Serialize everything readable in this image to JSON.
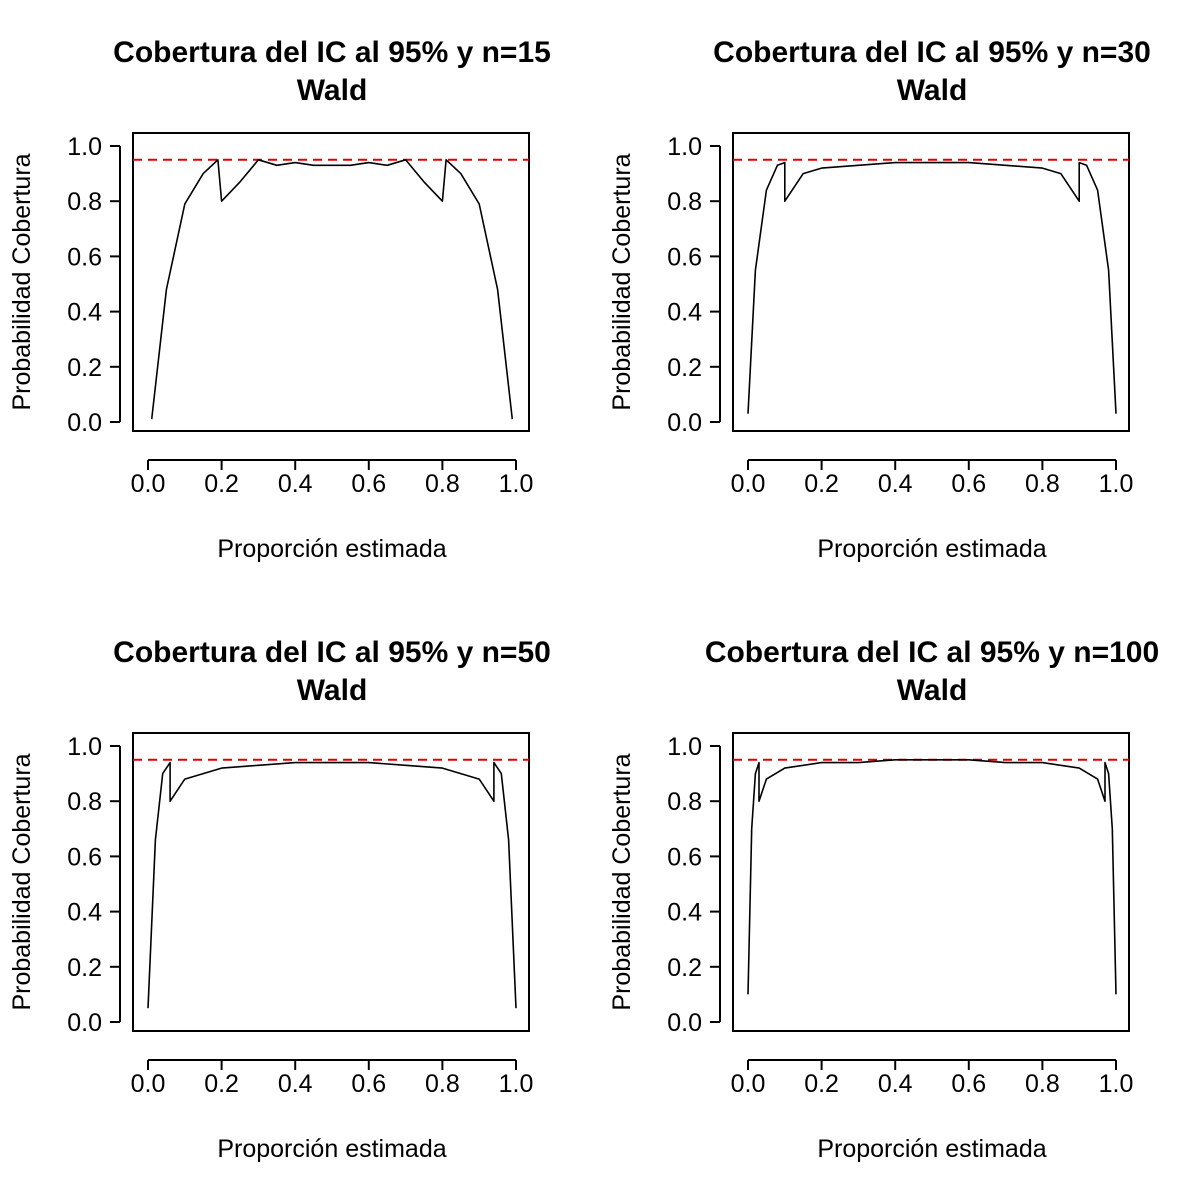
{
  "figure": {
    "background": "#ffffff",
    "line_color": "#000000",
    "reference_color": "#dd0000"
  },
  "chart_data": [
    {
      "type": "line",
      "title": "Cobertura del IC al 95% y n=15",
      "subtitle": "Wald",
      "xlabel": "Proporción estimada",
      "ylabel": "Probabilidad Cobertura",
      "n": 15,
      "xlim": [
        0,
        1
      ],
      "ylim": [
        0,
        1
      ],
      "xticks": [
        "0.0",
        "0.2",
        "0.4",
        "0.6",
        "0.8",
        "1.0"
      ],
      "yticks": [
        "0.0",
        "0.2",
        "0.4",
        "0.6",
        "0.8",
        "1.0"
      ],
      "reference_y": 0.95,
      "series": [
        {
          "x": [
            0.01,
            0.05,
            0.1,
            0.15,
            0.19,
            0.2,
            0.25,
            0.3,
            0.35,
            0.4,
            0.45,
            0.5,
            0.55,
            0.6,
            0.65,
            0.7,
            0.75,
            0.8,
            0.81,
            0.85,
            0.9,
            0.95,
            0.99
          ],
          "y": [
            0.01,
            0.48,
            0.79,
            0.9,
            0.95,
            0.8,
            0.87,
            0.95,
            0.93,
            0.94,
            0.93,
            0.93,
            0.93,
            0.94,
            0.93,
            0.95,
            0.87,
            0.8,
            0.95,
            0.9,
            0.79,
            0.48,
            0.01
          ]
        }
      ]
    },
    {
      "type": "line",
      "title": "Cobertura del IC al 95% y n=30",
      "subtitle": "Wald",
      "xlabel": "Proporción estimada",
      "ylabel": "Probabilidad Cobertura",
      "n": 30,
      "xlim": [
        0,
        1
      ],
      "ylim": [
        0,
        1
      ],
      "xticks": [
        "0.0",
        "0.2",
        "0.4",
        "0.6",
        "0.8",
        "1.0"
      ],
      "yticks": [
        "0.0",
        "0.2",
        "0.4",
        "0.6",
        "0.8",
        "1.0"
      ],
      "reference_y": 0.95,
      "series": [
        {
          "x": [
            0.0,
            0.02,
            0.05,
            0.08,
            0.1,
            0.1,
            0.15,
            0.2,
            0.3,
            0.4,
            0.5,
            0.6,
            0.7,
            0.8,
            0.85,
            0.9,
            0.9,
            0.92,
            0.95,
            0.98,
            1.0
          ],
          "y": [
            0.03,
            0.55,
            0.84,
            0.93,
            0.94,
            0.8,
            0.9,
            0.92,
            0.93,
            0.94,
            0.94,
            0.94,
            0.93,
            0.92,
            0.9,
            0.8,
            0.94,
            0.93,
            0.84,
            0.55,
            0.03
          ]
        }
      ]
    },
    {
      "type": "line",
      "title": "Cobertura del IC al 95% y n=50",
      "subtitle": "Wald",
      "xlabel": "Proporción estimada",
      "ylabel": "Probabilidad Cobertura",
      "n": 50,
      "xlim": [
        0,
        1
      ],
      "ylim": [
        0,
        1
      ],
      "xticks": [
        "0.0",
        "0.2",
        "0.4",
        "0.6",
        "0.8",
        "1.0"
      ],
      "yticks": [
        "0.0",
        "0.2",
        "0.4",
        "0.6",
        "0.8",
        "1.0"
      ],
      "reference_y": 0.95,
      "series": [
        {
          "x": [
            0.0,
            0.02,
            0.04,
            0.06,
            0.06,
            0.1,
            0.2,
            0.3,
            0.4,
            0.5,
            0.6,
            0.7,
            0.8,
            0.9,
            0.94,
            0.94,
            0.96,
            0.98,
            1.0
          ],
          "y": [
            0.05,
            0.66,
            0.9,
            0.94,
            0.8,
            0.88,
            0.92,
            0.93,
            0.94,
            0.94,
            0.94,
            0.93,
            0.92,
            0.88,
            0.8,
            0.94,
            0.9,
            0.66,
            0.05
          ]
        }
      ]
    },
    {
      "type": "line",
      "title": "Cobertura del IC al 95% y n=100",
      "subtitle": "Wald",
      "xlabel": "Proporción estimada",
      "ylabel": "Probabilidad Cobertura",
      "n": 100,
      "xlim": [
        0,
        1
      ],
      "ylim": [
        0,
        1
      ],
      "xticks": [
        "0.0",
        "0.2",
        "0.4",
        "0.6",
        "0.8",
        "1.0"
      ],
      "yticks": [
        "0.0",
        "0.2",
        "0.4",
        "0.6",
        "0.8",
        "1.0"
      ],
      "reference_y": 0.95,
      "series": [
        {
          "x": [
            0.0,
            0.01,
            0.02,
            0.03,
            0.03,
            0.05,
            0.1,
            0.2,
            0.3,
            0.4,
            0.5,
            0.6,
            0.7,
            0.8,
            0.9,
            0.95,
            0.97,
            0.97,
            0.98,
            0.99,
            1.0
          ],
          "y": [
            0.1,
            0.7,
            0.9,
            0.94,
            0.8,
            0.88,
            0.92,
            0.94,
            0.94,
            0.95,
            0.95,
            0.95,
            0.94,
            0.94,
            0.92,
            0.88,
            0.8,
            0.94,
            0.9,
            0.7,
            0.1
          ]
        }
      ]
    }
  ]
}
